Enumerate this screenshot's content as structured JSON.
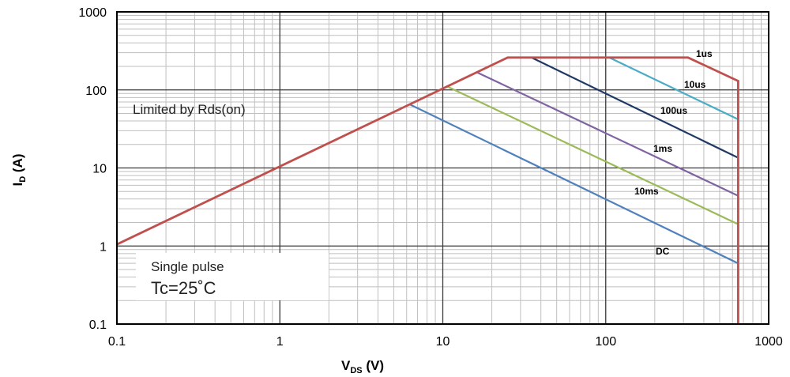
{
  "chart_data": {
    "type": "line",
    "x_scale": "log",
    "y_scale": "log",
    "xlim": [
      0.1,
      1000
    ],
    "ylim": [
      0.1,
      1000
    ],
    "grid": true,
    "xlabel": {
      "main": "V",
      "sub": "DS",
      "unit": " (V)"
    },
    "ylabel": {
      "main": "I",
      "sub": "D",
      "unit": " (A)"
    },
    "x_ticks": [
      "0.1",
      "1",
      "10",
      "100",
      "1000"
    ],
    "y_ticks": [
      "1000",
      "100",
      "10",
      "1",
      "0.1"
    ],
    "series": [
      {
        "name": "DC",
        "color": "#4f81bd",
        "points": [
          [
            6.2,
            66
          ],
          [
            650,
            0.6
          ]
        ]
      },
      {
        "name": "10ms",
        "color": "#9bbb59",
        "points": [
          [
            10.5,
            112
          ],
          [
            650,
            1.9
          ]
        ]
      },
      {
        "name": "1ms",
        "color": "#8064a2",
        "points": [
          [
            16,
            170
          ],
          [
            650,
            4.4
          ]
        ]
      },
      {
        "name": "100us",
        "color": "#1f3864",
        "points": [
          [
            35,
            260
          ],
          [
            650,
            13.5
          ]
        ]
      },
      {
        "name": "10us",
        "color": "#4bacc6",
        "points": [
          [
            105,
            260
          ],
          [
            650,
            42
          ]
        ]
      },
      {
        "name": "1us",
        "color": "#c0504d",
        "points": [
          [
            0.1,
            1.05
          ],
          [
            25,
            260
          ],
          [
            320,
            260
          ],
          [
            650,
            130
          ],
          [
            650,
            0.1
          ]
        ]
      }
    ],
    "annotations": {
      "rds_limit": "Limited by Rds(on)",
      "pulse": "Single pulse",
      "tc": "Tc=25˚C"
    }
  }
}
